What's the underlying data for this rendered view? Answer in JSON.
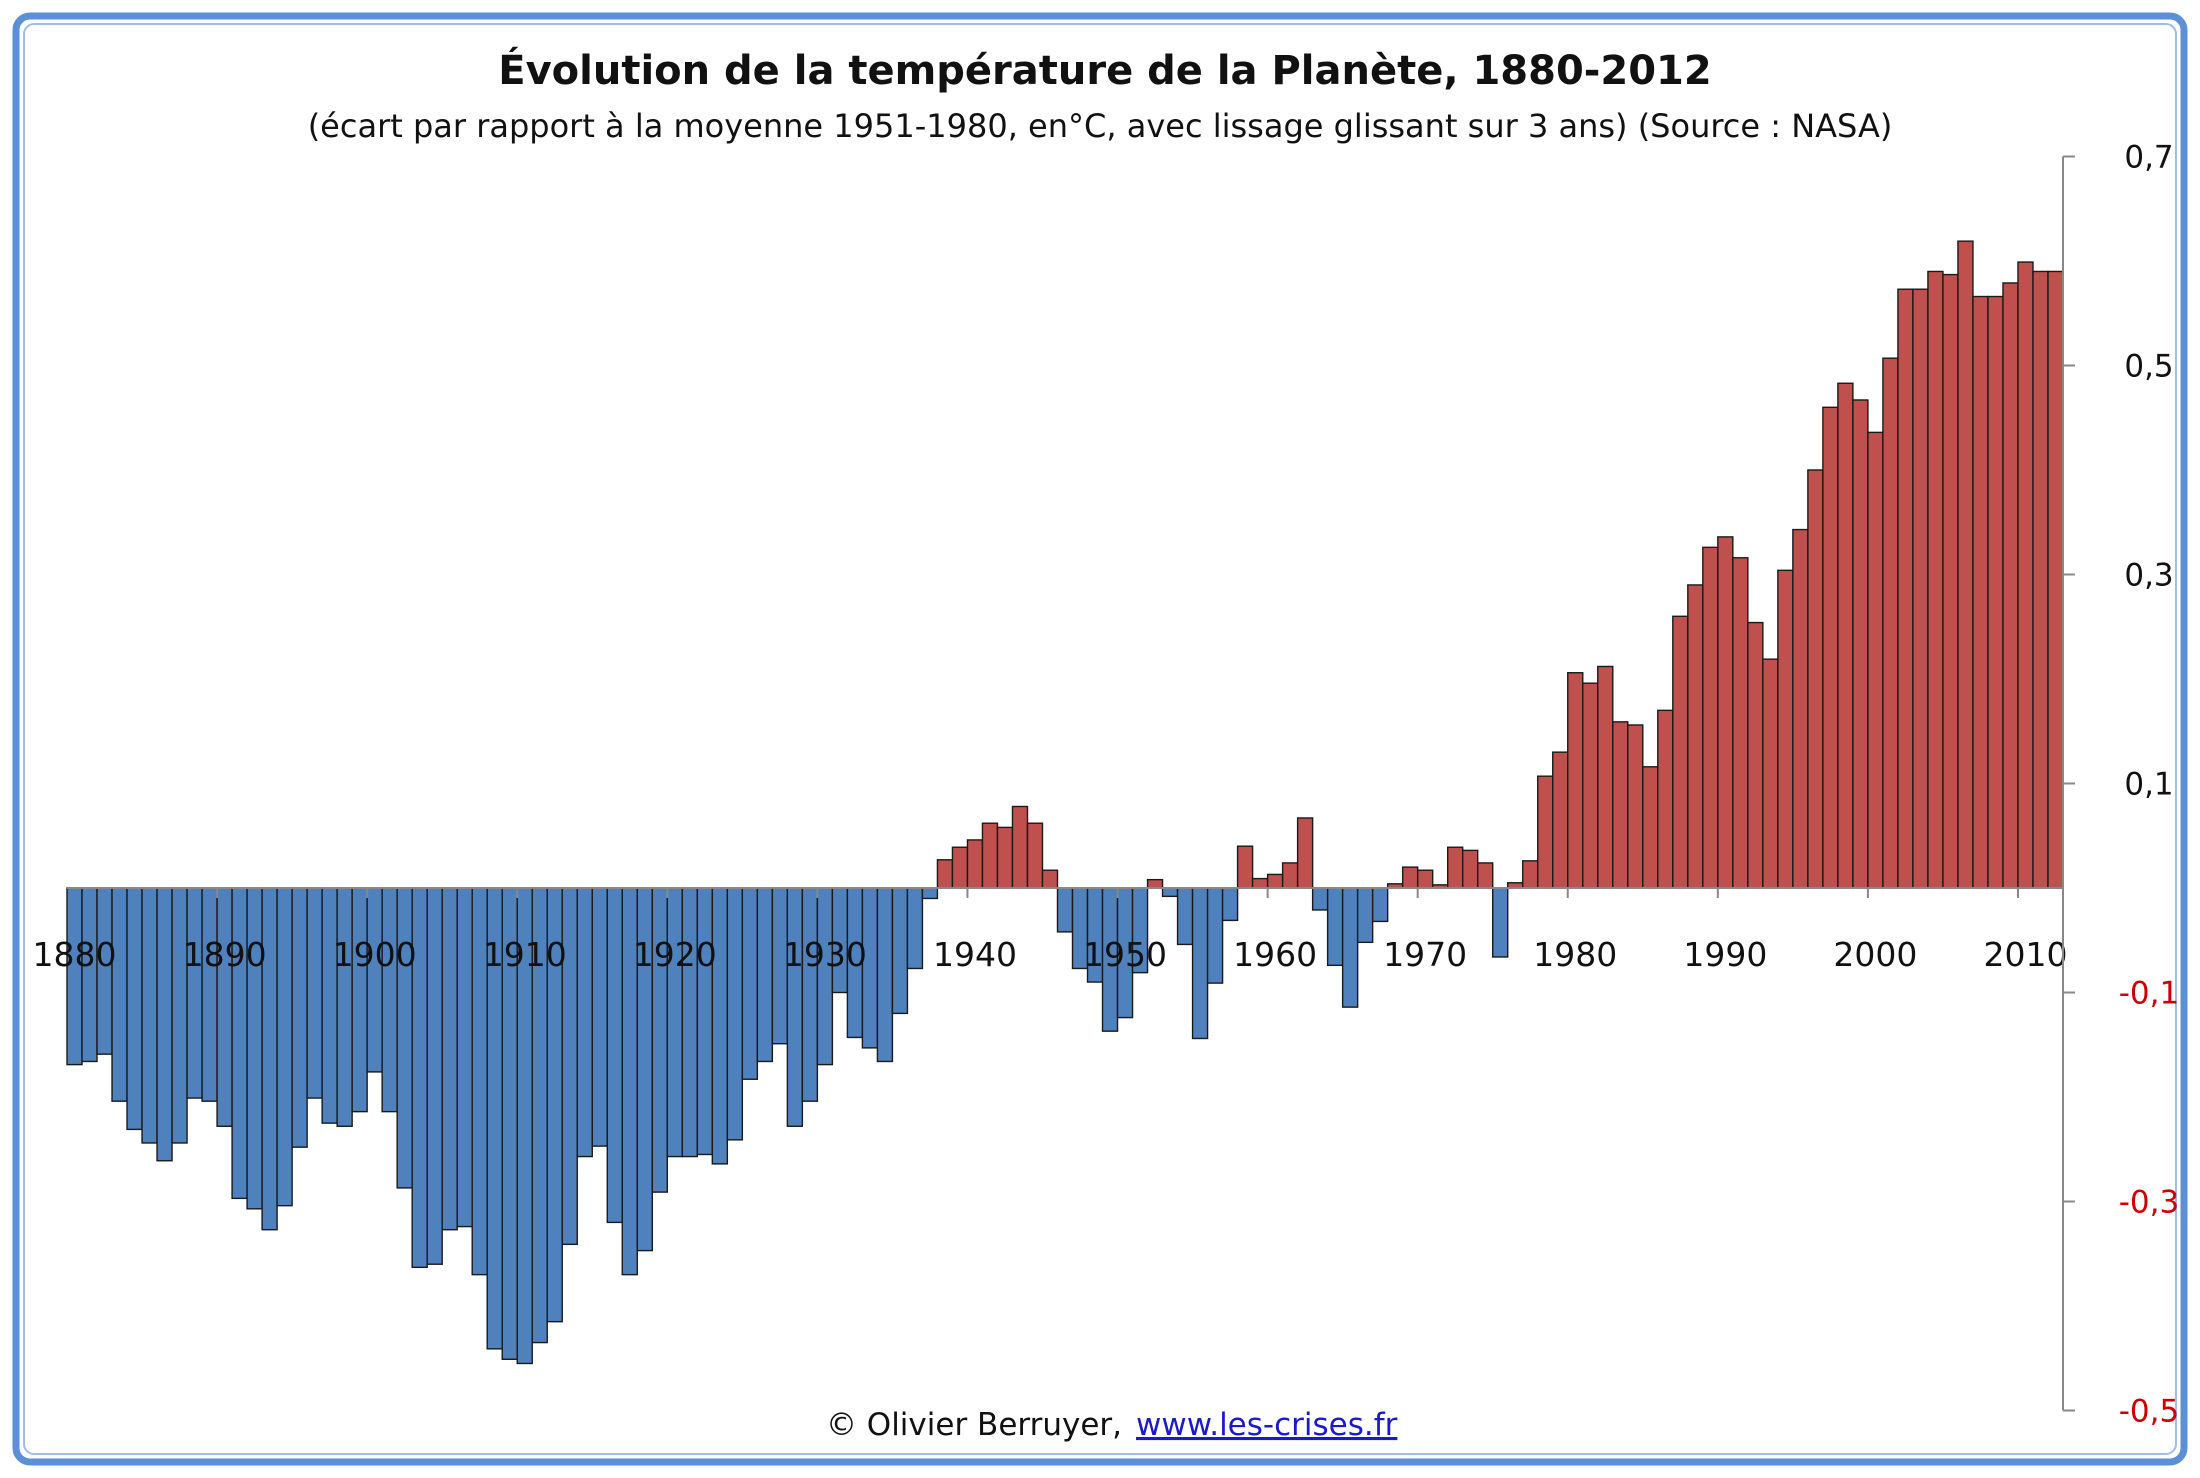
{
  "chart_data": {
    "type": "bar",
    "title": "Évolution de la température de la Planète, 1880-2012",
    "subtitle": "(écart par rapport à la moyenne 1951-1980,  en°C, avec lissage glissant sur 3 ans) (Source : NASA)",
    "xlabel": "",
    "ylabel": "",
    "x_start": 1880,
    "x_end": 2012,
    "ylim": [
      -0.5,
      0.7
    ],
    "y_ticks": [
      0.7,
      0.5,
      0.3,
      0.1,
      -0.1,
      -0.3,
      -0.5
    ],
    "y_tick_labels": [
      "0,7",
      "0,5",
      "0,3",
      "0,1",
      "-0,1",
      "-0,3",
      "-0,5"
    ],
    "x_tick_labels": [
      "1880",
      "1890",
      "1900",
      "1910",
      "1920",
      "1930",
      "1940",
      "1950",
      "1960",
      "1970",
      "1980",
      "1990",
      "2000",
      "2010"
    ],
    "y_axis_position": "right",
    "grid": false,
    "colors": {
      "positive": "#c0504d",
      "negative": "#4f81bd",
      "negative_tick_label": "#d00000"
    },
    "values": [
      -0.169,
      -0.166,
      -0.159,
      -0.204,
      -0.231,
      -0.244,
      -0.261,
      -0.244,
      -0.201,
      -0.204,
      -0.228,
      -0.297,
      -0.307,
      -0.327,
      -0.304,
      -0.248,
      -0.201,
      -0.225,
      -0.228,
      -0.214,
      -0.176,
      -0.214,
      -0.287,
      -0.363,
      -0.36,
      -0.327,
      -0.324,
      -0.37,
      -0.441,
      -0.451,
      -0.455,
      -0.435,
      -0.415,
      -0.341,
      -0.257,
      -0.247,
      -0.32,
      -0.37,
      -0.347,
      -0.291,
      -0.257,
      -0.257,
      -0.255,
      -0.264,
      -0.241,
      -0.183,
      -0.166,
      -0.149,
      -0.228,
      -0.204,
      -0.169,
      -0.1,
      -0.143,
      -0.153,
      -0.166,
      -0.12,
      -0.077,
      -0.01,
      0.027,
      0.039,
      0.046,
      0.062,
      0.058,
      0.078,
      0.062,
      0.017,
      -0.042,
      -0.077,
      -0.09,
      -0.137,
      -0.124,
      -0.081,
      0.008,
      -0.008,
      -0.054,
      -0.144,
      -0.091,
      -0.031,
      0.04,
      0.009,
      0.013,
      0.024,
      0.067,
      -0.021,
      -0.074,
      -0.114,
      -0.052,
      -0.032,
      0.004,
      0.02,
      0.017,
      0.003,
      0.039,
      0.036,
      0.024,
      -0.066,
      0.005,
      0.026,
      0.107,
      0.13,
      0.206,
      0.196,
      0.212,
      0.159,
      0.156,
      0.116,
      0.17,
      0.26,
      0.29,
      0.326,
      0.336,
      0.316,
      0.254,
      0.219,
      0.304,
      0.343,
      0.4,
      0.46,
      0.483,
      0.467,
      0.436,
      0.507,
      0.573,
      0.573,
      0.59,
      0.587,
      0.619,
      0.566,
      0.566,
      0.579,
      0.599,
      0.59,
      0.59
    ]
  },
  "footer": {
    "credit": "© Olivier Berruyer,",
    "link": "www.les-crises.fr"
  }
}
